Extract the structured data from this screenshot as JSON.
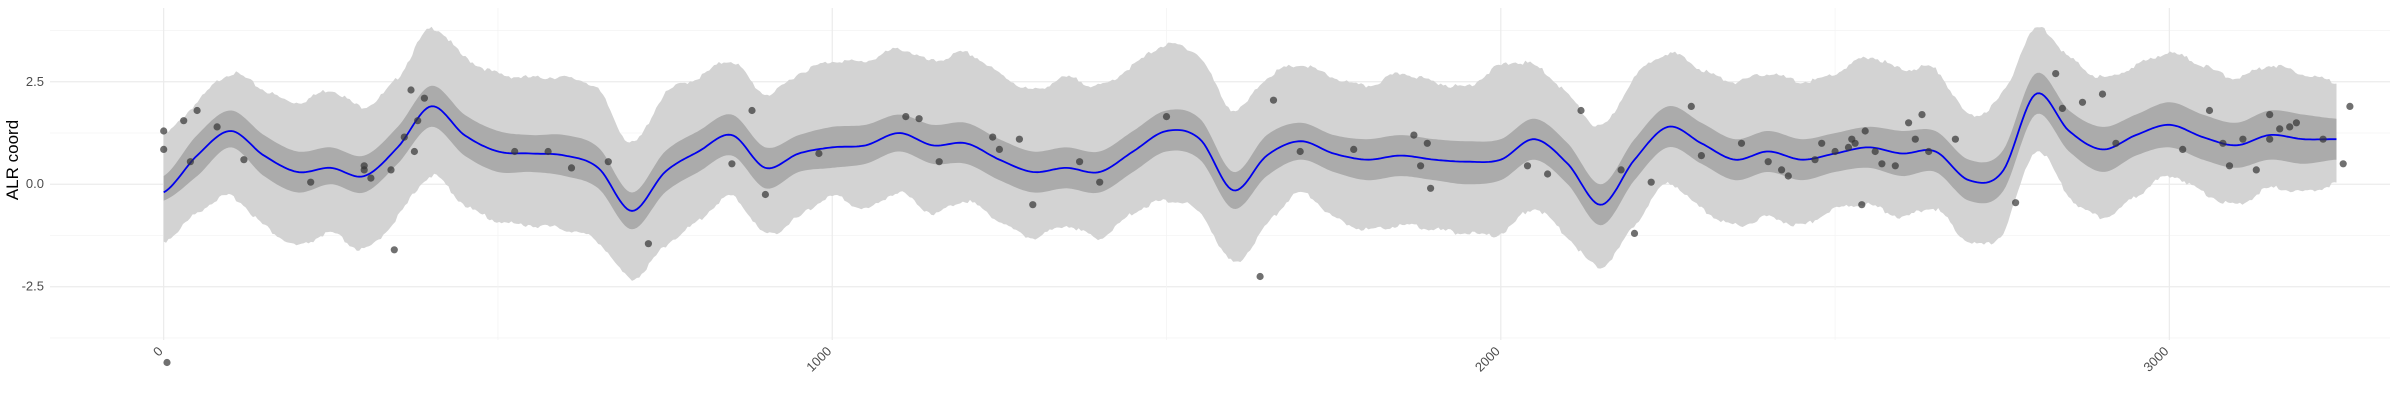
{
  "chart_data": {
    "type": "line",
    "title": "",
    "xlabel": "",
    "ylabel": "ALR coord",
    "xlim": [
      -170,
      3330
    ],
    "ylim": [
      -3.8,
      4.3
    ],
    "x_ticks": [
      0,
      1000,
      2000,
      3000
    ],
    "x_tick_labels": [
      "0",
      "1000",
      "2000",
      "3000"
    ],
    "y_ticks": [
      -2.5,
      0,
      2.5
    ],
    "y_tick_labels": [
      "-2.5",
      "0.0",
      "2.5"
    ],
    "grid": true,
    "legend": "none",
    "colors": {
      "mean_line": "#0000ee",
      "inner_band": "#ababab",
      "outer_band": "#d3d3d3",
      "points": "#333333",
      "grid": "#ebebeb"
    },
    "mean_curve": {
      "x": [
        0,
        50,
        100,
        150,
        200,
        250,
        300,
        350,
        400,
        450,
        500,
        550,
        600,
        650,
        700,
        750,
        800,
        850,
        900,
        950,
        1000,
        1050,
        1100,
        1150,
        1200,
        1250,
        1300,
        1350,
        1400,
        1450,
        1500,
        1550,
        1600,
        1650,
        1700,
        1750,
        1800,
        1850,
        1900,
        1950,
        2000,
        2050,
        2100,
        2150,
        2200,
        2250,
        2300,
        2350,
        2400,
        2450,
        2500,
        2550,
        2600,
        2650,
        2700,
        2750,
        2800,
        2850,
        2900,
        2950,
        3000,
        3050,
        3100,
        3150,
        3200,
        3250
      ],
      "y": [
        -0.2,
        0.7,
        1.3,
        0.7,
        0.3,
        0.4,
        0.2,
        0.9,
        1.9,
        1.2,
        0.8,
        0.75,
        0.7,
        0.4,
        -0.65,
        0.3,
        0.8,
        1.2,
        0.4,
        0.75,
        0.9,
        0.95,
        1.25,
        0.95,
        1.0,
        0.6,
        0.3,
        0.4,
        0.3,
        0.8,
        1.3,
        1.1,
        -0.15,
        0.7,
        1.05,
        0.75,
        0.6,
        0.7,
        0.6,
        0.55,
        0.6,
        1.1,
        0.5,
        -0.5,
        0.6,
        1.4,
        1.0,
        0.6,
        0.8,
        0.6,
        0.75,
        0.9,
        0.75,
        0.8,
        0.1,
        0.3,
        2.2,
        1.3,
        0.85,
        1.2,
        1.45,
        1.15,
        0.95,
        1.2,
        1.1,
        1.1
      ]
    },
    "inner_band": {
      "lower": [
        -0.4,
        0.2,
        0.9,
        0.2,
        -0.2,
        0.0,
        -0.2,
        0.5,
        1.4,
        0.7,
        0.3,
        0.3,
        0.2,
        -0.1,
        -1.1,
        -0.2,
        0.3,
        0.7,
        -0.1,
        0.3,
        0.4,
        0.5,
        0.8,
        0.5,
        0.5,
        0.1,
        -0.2,
        -0.1,
        -0.2,
        0.3,
        0.8,
        0.6,
        -0.6,
        0.2,
        0.6,
        0.3,
        0.1,
        0.2,
        0.1,
        0.0,
        0.1,
        0.6,
        0.0,
        -1.0,
        0.1,
        0.9,
        0.5,
        0.1,
        0.3,
        0.1,
        0.3,
        0.4,
        0.2,
        0.3,
        -0.4,
        -0.2,
        1.7,
        0.8,
        0.3,
        0.7,
        0.9,
        0.6,
        0.4,
        0.6,
        0.5,
        0.6
      ],
      "upper": [
        0.2,
        1.2,
        1.8,
        1.2,
        0.8,
        0.9,
        0.7,
        1.4,
        2.4,
        1.7,
        1.3,
        1.2,
        1.2,
        0.9,
        -0.2,
        0.8,
        1.3,
        1.7,
        0.9,
        1.2,
        1.4,
        1.45,
        1.7,
        1.45,
        1.5,
        1.1,
        0.8,
        0.9,
        0.8,
        1.3,
        1.8,
        1.6,
        0.3,
        1.2,
        1.5,
        1.2,
        1.1,
        1.2,
        1.1,
        1.05,
        1.1,
        1.6,
        1.0,
        0.0,
        1.1,
        1.9,
        1.5,
        1.1,
        1.3,
        1.1,
        1.25,
        1.4,
        1.3,
        1.3,
        0.6,
        0.8,
        2.7,
        1.8,
        1.4,
        1.7,
        2.0,
        1.7,
        1.5,
        1.8,
        1.7,
        1.6
      ]
    },
    "outer_band": {
      "lower": [
        -1.4,
        -0.7,
        -0.3,
        -1.0,
        -1.5,
        -1.2,
        -1.6,
        -0.8,
        0.2,
        -0.5,
        -0.9,
        -1.0,
        -1.1,
        -1.4,
        -2.3,
        -1.5,
        -0.9,
        -0.3,
        -1.2,
        -0.8,
        -0.3,
        -0.6,
        -0.2,
        -0.7,
        -0.4,
        -0.9,
        -1.3,
        -1.0,
        -1.3,
        -0.7,
        -0.4,
        -0.7,
        -1.9,
        -1.0,
        -0.2,
        -0.8,
        -1.1,
        -1.0,
        -1.1,
        -1.2,
        -1.2,
        -0.6,
        -1.3,
        -2.0,
        -1.0,
        0.0,
        -0.6,
        -1.0,
        -0.8,
        -1.0,
        -0.6,
        -0.5,
        -0.8,
        -0.6,
        -1.4,
        -1.2,
        0.8,
        -0.3,
        -0.8,
        -0.3,
        0.2,
        -0.2,
        -0.5,
        -0.1,
        -0.2,
        0.0
      ],
      "upper": [
        1.2,
        2.0,
        2.7,
        2.3,
        2.0,
        2.3,
        1.9,
        2.6,
        3.8,
        3.1,
        2.7,
        2.6,
        2.6,
        2.3,
        1.0,
        2.2,
        2.6,
        3.0,
        2.2,
        2.7,
        3.0,
        3.0,
        3.3,
        3.0,
        3.2,
        2.7,
        2.3,
        2.6,
        2.4,
        2.9,
        3.4,
        3.1,
        1.8,
        2.6,
        2.9,
        2.6,
        2.4,
        2.7,
        2.5,
        2.4,
        2.9,
        2.9,
        2.2,
        1.4,
        2.6,
        3.2,
        2.8,
        2.5,
        2.7,
        2.5,
        2.7,
        3.1,
        2.8,
        2.8,
        1.7,
        2.2,
        3.8,
        3.1,
        2.6,
        2.9,
        3.2,
        2.9,
        2.6,
        2.9,
        2.7,
        2.5
      ]
    },
    "points": [
      [
        0,
        1.3
      ],
      [
        0,
        0.85
      ],
      [
        5,
        -4.35
      ],
      [
        30,
        1.55
      ],
      [
        40,
        0.55
      ],
      [
        50,
        1.8
      ],
      [
        80,
        1.4
      ],
      [
        120,
        0.6
      ],
      [
        220,
        0.05
      ],
      [
        300,
        0.45
      ],
      [
        300,
        0.35
      ],
      [
        310,
        0.15
      ],
      [
        340,
        0.35
      ],
      [
        345,
        -1.6
      ],
      [
        360,
        1.15
      ],
      [
        370,
        2.3
      ],
      [
        375,
        0.8
      ],
      [
        380,
        1.55
      ],
      [
        390,
        2.1
      ],
      [
        525,
        0.8
      ],
      [
        575,
        0.8
      ],
      [
        610,
        0.4
      ],
      [
        665,
        0.55
      ],
      [
        725,
        -1.45
      ],
      [
        850,
        0.5
      ],
      [
        880,
        1.8
      ],
      [
        900,
        -0.25
      ],
      [
        980,
        0.75
      ],
      [
        1110,
        1.65
      ],
      [
        1130,
        1.6
      ],
      [
        1160,
        0.55
      ],
      [
        1240,
        1.15
      ],
      [
        1250,
        0.85
      ],
      [
        1280,
        1.1
      ],
      [
        1300,
        -0.5
      ],
      [
        1370,
        0.55
      ],
      [
        1400,
        0.05
      ],
      [
        1500,
        1.65
      ],
      [
        1640,
        -2.25
      ],
      [
        1660,
        2.05
      ],
      [
        1700,
        0.8
      ],
      [
        1780,
        0.85
      ],
      [
        1870,
        1.2
      ],
      [
        1880,
        0.45
      ],
      [
        1890,
        1.0
      ],
      [
        1895,
        -0.1
      ],
      [
        2040,
        0.45
      ],
      [
        2070,
        0.25
      ],
      [
        2120,
        1.8
      ],
      [
        2180,
        0.35
      ],
      [
        2200,
        -1.2
      ],
      [
        2225,
        0.05
      ],
      [
        2285,
        1.9
      ],
      [
        2300,
        0.7
      ],
      [
        2360,
        1.0
      ],
      [
        2400,
        0.55
      ],
      [
        2420,
        0.35
      ],
      [
        2430,
        0.2
      ],
      [
        2470,
        0.6
      ],
      [
        2480,
        1.0
      ],
      [
        2500,
        0.8
      ],
      [
        2520,
        0.9
      ],
      [
        2525,
        1.1
      ],
      [
        2530,
        1.0
      ],
      [
        2540,
        -0.5
      ],
      [
        2545,
        1.3
      ],
      [
        2560,
        0.8
      ],
      [
        2570,
        0.5
      ],
      [
        2590,
        0.45
      ],
      [
        2610,
        1.5
      ],
      [
        2620,
        1.1
      ],
      [
        2630,
        1.7
      ],
      [
        2640,
        0.8
      ],
      [
        2680,
        1.1
      ],
      [
        2770,
        -0.45
      ],
      [
        2830,
        2.7
      ],
      [
        2840,
        1.85
      ],
      [
        2870,
        2.0
      ],
      [
        2900,
        2.2
      ],
      [
        2920,
        1.0
      ],
      [
        3020,
        0.85
      ],
      [
        3060,
        1.8
      ],
      [
        3080,
        1.0
      ],
      [
        3090,
        0.45
      ],
      [
        3110,
        1.1
      ],
      [
        3130,
        0.35
      ],
      [
        3150,
        1.7
      ],
      [
        3150,
        1.1
      ],
      [
        3165,
        1.35
      ],
      [
        3180,
        1.4
      ],
      [
        3190,
        1.5
      ],
      [
        3230,
        1.1
      ],
      [
        3260,
        0.5
      ],
      [
        3270,
        1.9
      ]
    ]
  }
}
